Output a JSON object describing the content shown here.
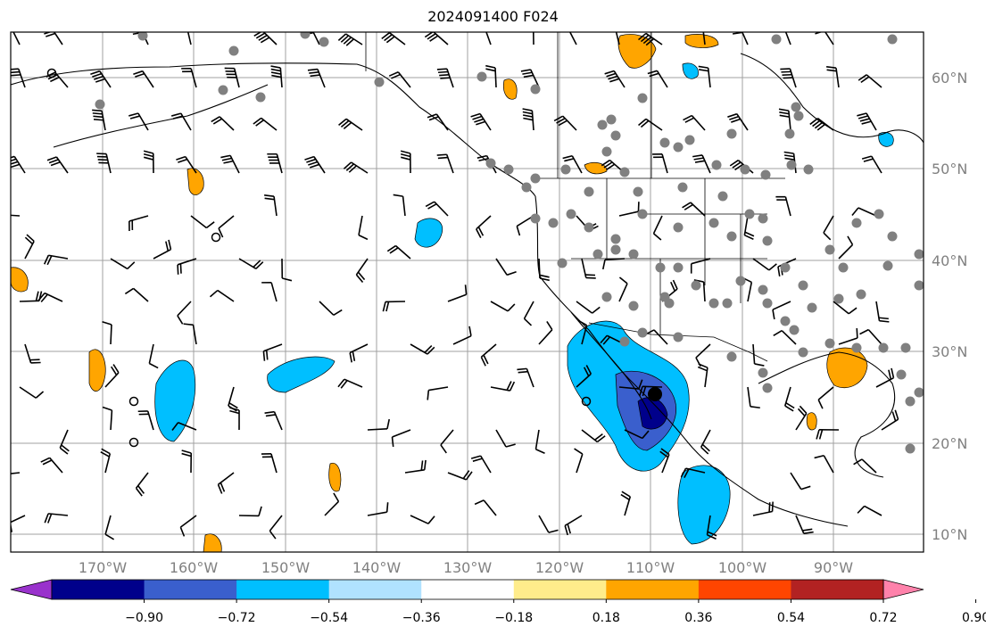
{
  "title": "2024091400 F024",
  "map": {
    "lat_labels": [
      "60°N",
      "50°N",
      "40°N",
      "30°N",
      "20°N",
      "10°N"
    ],
    "lon_labels": [
      "170°W",
      "160°W",
      "150°W",
      "140°W",
      "130°W",
      "120°W",
      "110°W",
      "100°W",
      "90°W"
    ],
    "grid_color": "#a0a0a0",
    "label_color": "#808080"
  },
  "colorbar": {
    "ticks": [
      "−0.90",
      "−0.72",
      "−0.54",
      "−0.36",
      "−0.18",
      "0.18",
      "0.36",
      "0.54",
      "0.72",
      "0.90"
    ],
    "colors": [
      "#9932cc",
      "#00008b",
      "#3a5fcd",
      "#00bfff",
      "#b0e2ff",
      "#ffffff",
      "#ffec8b",
      "#ffa500",
      "#ff4500",
      "#b22222",
      "#ff82ab"
    ]
  }
}
